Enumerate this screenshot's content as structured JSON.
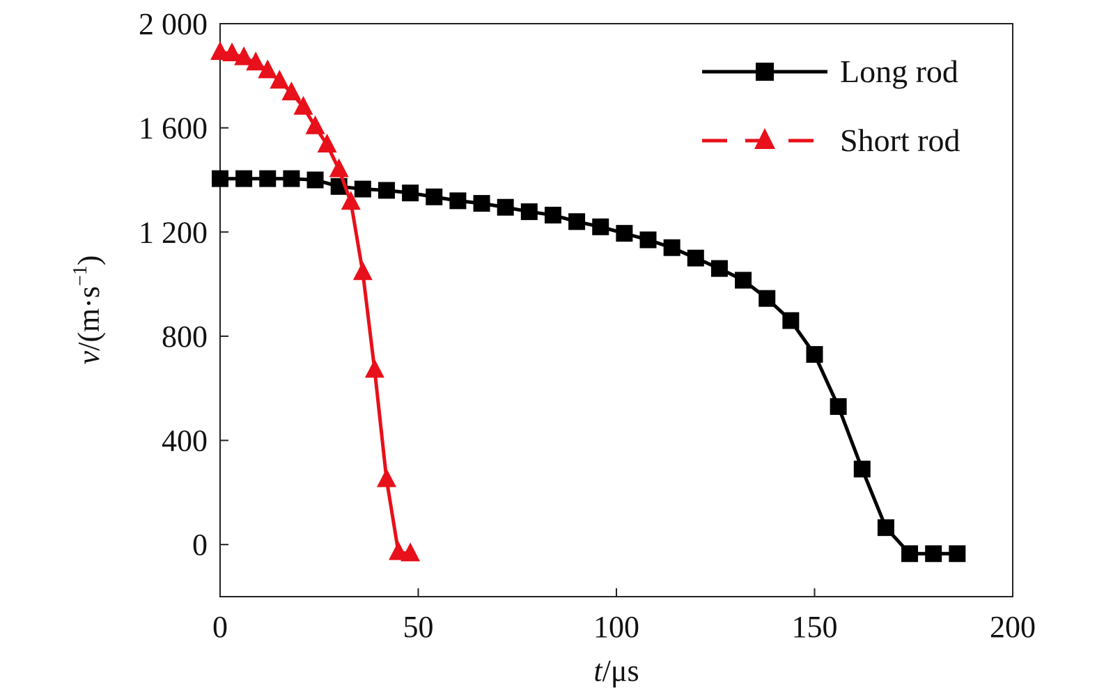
{
  "chart_data": {
    "type": "line",
    "title": "",
    "xlabel": {
      "italic": "t",
      "unit": "/μs"
    },
    "ylabel": {
      "italic": "v",
      "unit": "/(m·s",
      "sup": "−1",
      "close": ")"
    },
    "xlim": [
      0,
      200
    ],
    "ylim": [
      -200,
      2000
    ],
    "xticks": [
      0,
      50,
      100,
      150,
      200
    ],
    "xtick_labels": [
      "0",
      "50",
      "100",
      "150",
      "200"
    ],
    "yticks": [
      0,
      400,
      800,
      1200,
      1600,
      2000
    ],
    "ytick_labels": [
      "0",
      "400",
      "800",
      "1 200",
      "1 600",
      "2 000"
    ],
    "grid": false,
    "legend_position": "top-right",
    "series": [
      {
        "name": "Long rod",
        "color": "#000000",
        "marker": "square",
        "line": "solid",
        "x": [
          0,
          6,
          12,
          18,
          24,
          30,
          36,
          42,
          48,
          54,
          60,
          66,
          72,
          78,
          84,
          90,
          96,
          102,
          108,
          114,
          120,
          126,
          132,
          138,
          144,
          150,
          156,
          162,
          168,
          174,
          180,
          186
        ],
        "y": [
          1405,
          1405,
          1405,
          1405,
          1400,
          1375,
          1365,
          1360,
          1350,
          1335,
          1320,
          1310,
          1295,
          1278,
          1265,
          1240,
          1220,
          1195,
          1170,
          1140,
          1100,
          1060,
          1015,
          945,
          860,
          730,
          530,
          290,
          65,
          -35,
          -35,
          -35
        ]
      },
      {
        "name": "Short rod",
        "color": "#e8101a",
        "marker": "triangle",
        "line": "dashed",
        "x": [
          0,
          3,
          6,
          9,
          12,
          15,
          18,
          21,
          24,
          27,
          30,
          33,
          36,
          39,
          42,
          45,
          48
        ],
        "y": [
          1890,
          1885,
          1870,
          1850,
          1820,
          1780,
          1735,
          1680,
          1605,
          1535,
          1440,
          1315,
          1045,
          670,
          250,
          -30,
          -35
        ]
      }
    ]
  }
}
